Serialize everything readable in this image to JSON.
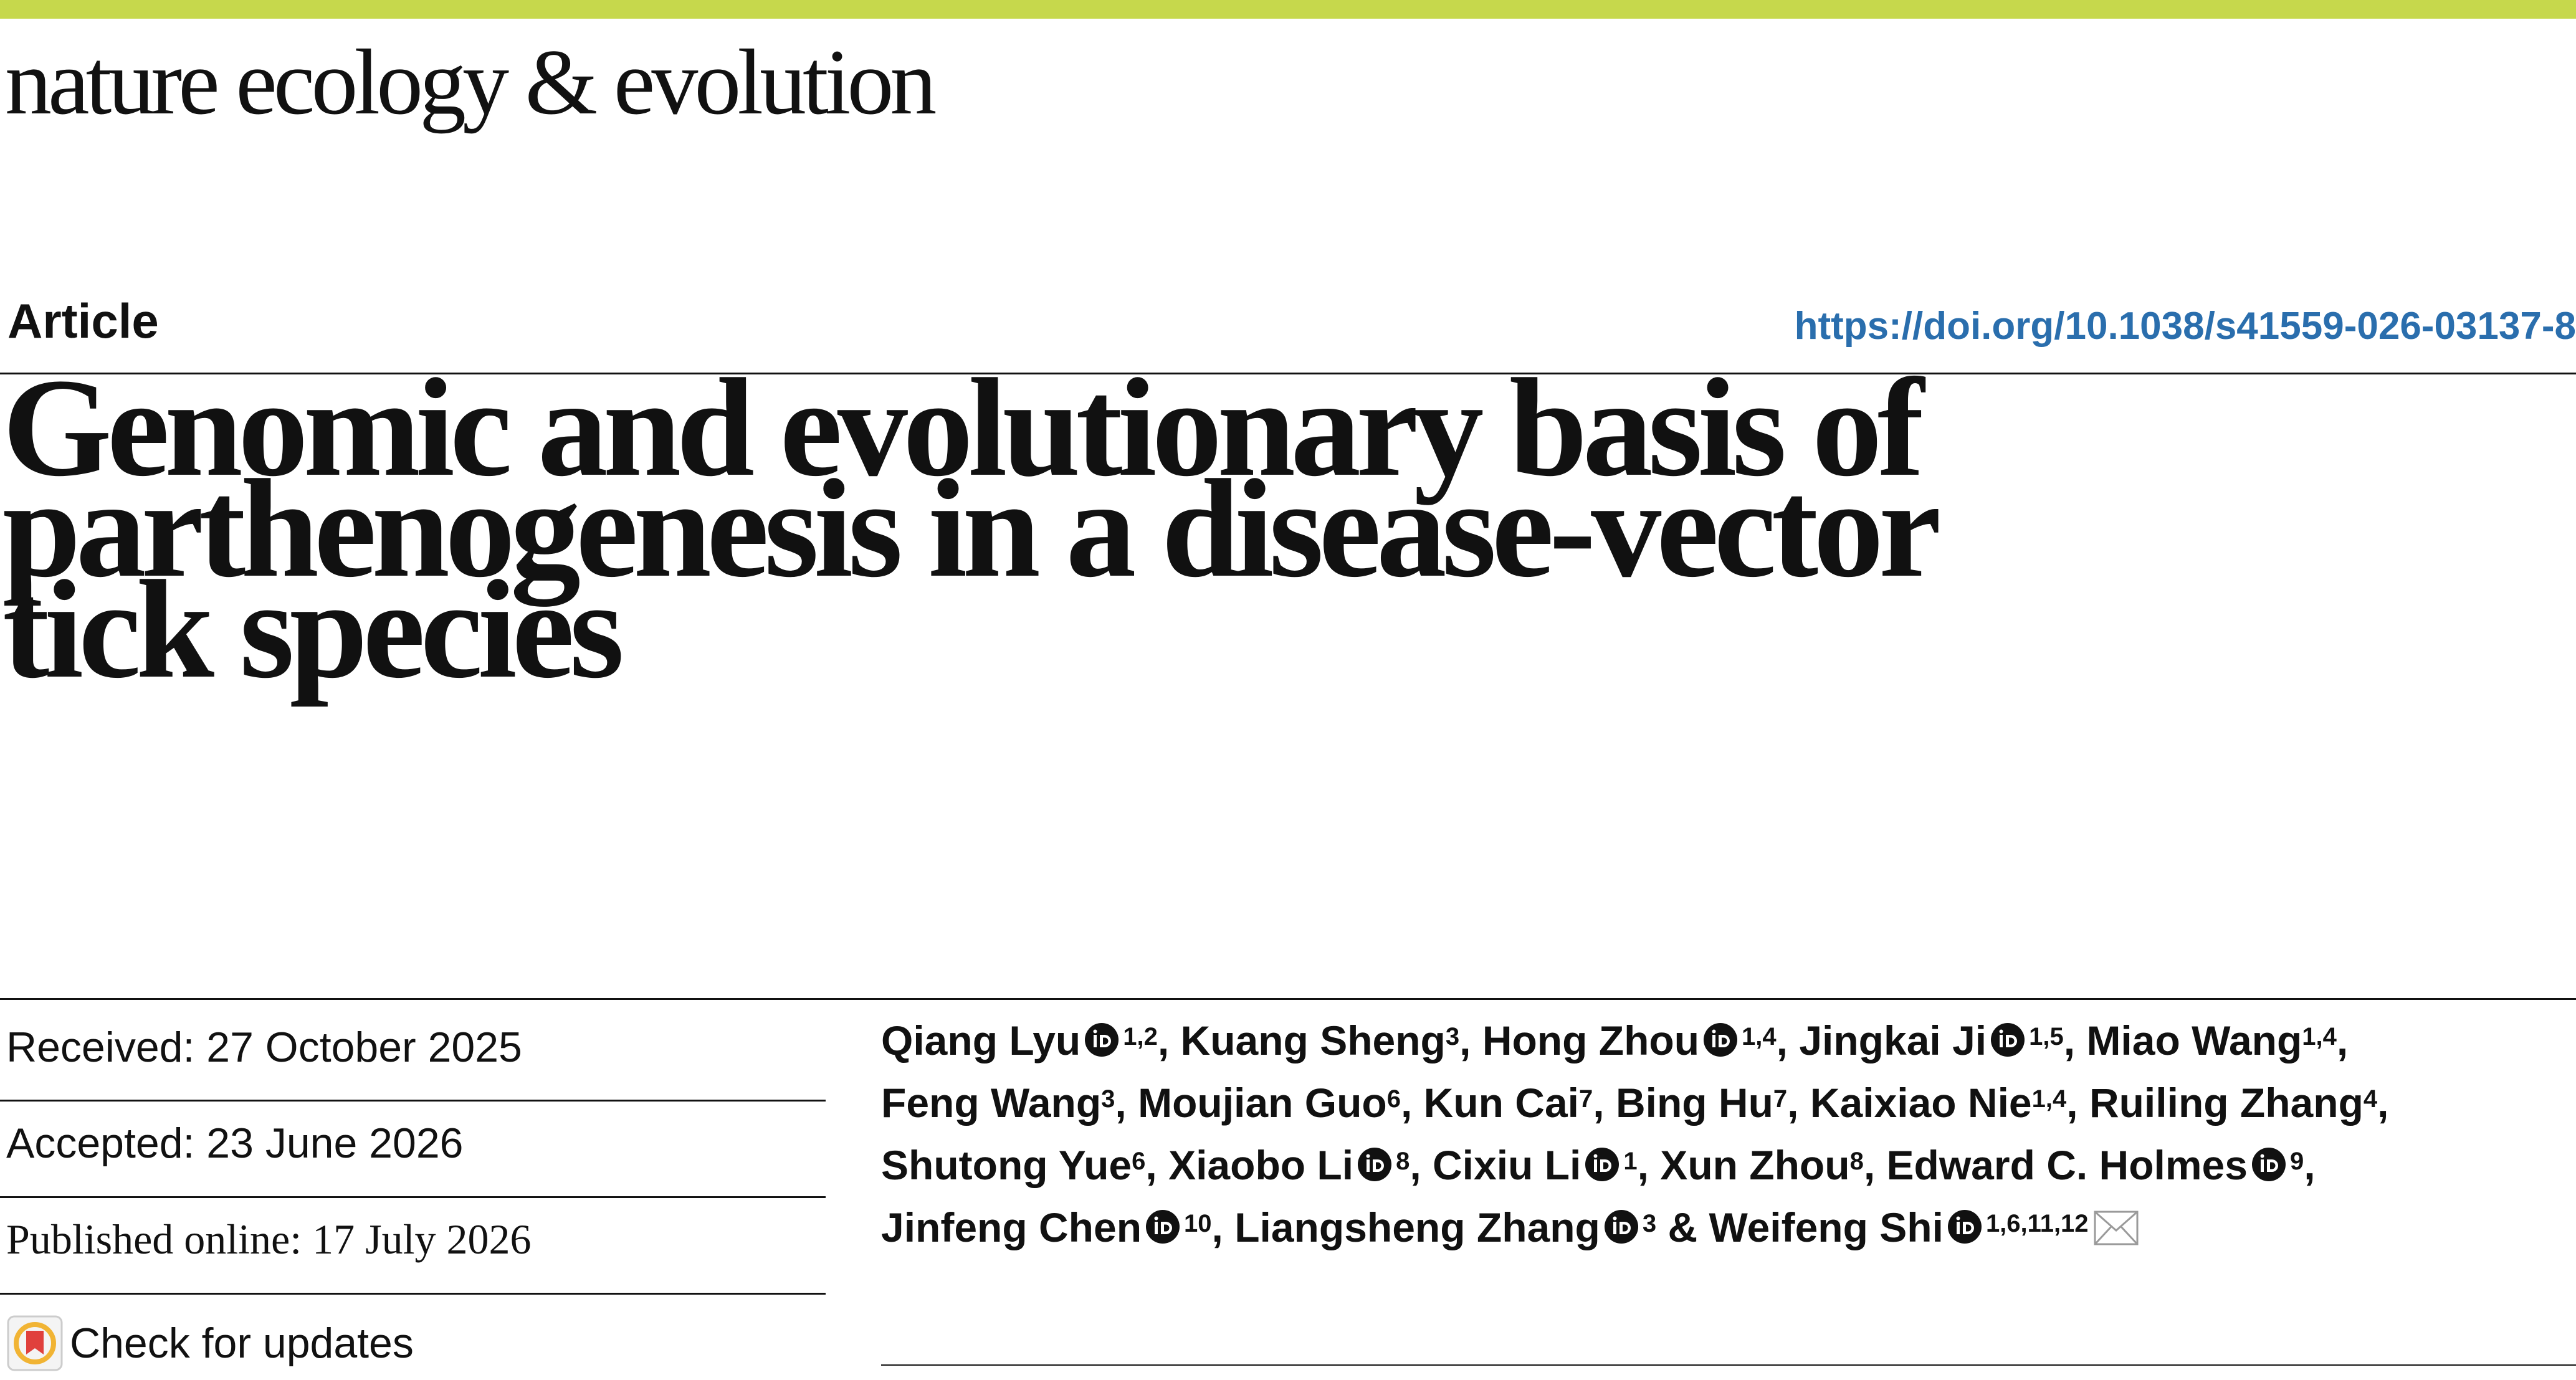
{
  "header": {
    "journal_name": "nature ecology & evolution",
    "accent_color": "#c6d84c"
  },
  "article": {
    "type": "Article",
    "doi": "https://doi.org/10.1038/s41559-026-03137-8",
    "doi_color": "#2a6ead",
    "title_lines": [
      "Genomic and evolutionary basis of",
      "parthenogenesis in a disease-vector",
      "tick species"
    ]
  },
  "dates": {
    "received": "Received: 27 October 2025",
    "accepted": "Accepted: 23 June 2026",
    "published": "Published online: 17 July 2026",
    "check_updates": "Check for updates"
  },
  "authors": [
    {
      "name": "Qiang Lyu",
      "orcid": true,
      "affil": "1,2",
      "sep": ","
    },
    {
      "name": "Kuang Sheng",
      "orcid": false,
      "affil": "3",
      "sep": ","
    },
    {
      "name": "Hong Zhou",
      "orcid": true,
      "affil": "1,4",
      "sep": ","
    },
    {
      "name": "Jingkai Ji",
      "orcid": true,
      "affil": "1,5",
      "sep": ","
    },
    {
      "name": "Miao Wang",
      "orcid": false,
      "affil": "1,4",
      "sep": ","
    },
    {
      "name": "Feng Wang",
      "orcid": false,
      "affil": "3",
      "sep": ","
    },
    {
      "name": "Moujian Guo",
      "orcid": false,
      "affil": "6",
      "sep": ","
    },
    {
      "name": "Kun Cai",
      "orcid": false,
      "affil": "7",
      "sep": ","
    },
    {
      "name": "Bing Hu",
      "orcid": false,
      "affil": "7",
      "sep": ","
    },
    {
      "name": "Kaixiao Nie",
      "orcid": false,
      "affil": "1,4",
      "sep": ","
    },
    {
      "name": "Ruiling Zhang",
      "orcid": false,
      "affil": "4",
      "sep": ","
    },
    {
      "name": "Shutong Yue",
      "orcid": false,
      "affil": "6",
      "sep": ","
    },
    {
      "name": "Xiaobo Li",
      "orcid": true,
      "affil": "8",
      "sep": ","
    },
    {
      "name": "Cixiu Li",
      "orcid": true,
      "affil": "1",
      "sep": ","
    },
    {
      "name": "Xun Zhou",
      "orcid": false,
      "affil": "8",
      "sep": ","
    },
    {
      "name": "Edward C. Holmes",
      "orcid": true,
      "affil": "9",
      "sep": ","
    },
    {
      "name": "Jinfeng Chen",
      "orcid": true,
      "affil": "10",
      "sep": ","
    },
    {
      "name": "Liangsheng Zhang",
      "orcid": true,
      "affil": "3",
      "sep": " &"
    },
    {
      "name": "Weifeng Shi",
      "orcid": true,
      "affil": "1,6,11,12",
      "sep": "",
      "corresponding": true
    }
  ]
}
